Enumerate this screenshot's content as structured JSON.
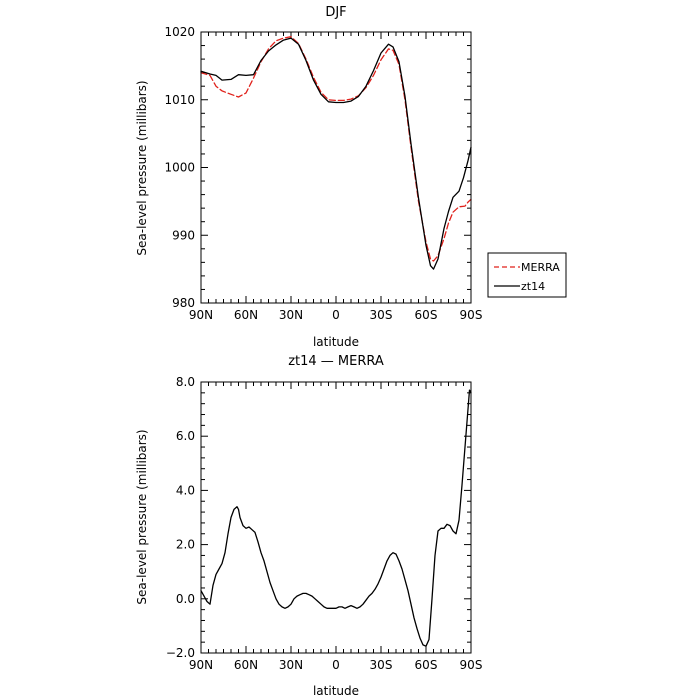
{
  "chart_data": [
    {
      "type": "line",
      "title": "DJF",
      "xlabel": "latitude",
      "ylabel": "Sea-level pressure (millibars)",
      "xlim": [
        90,
        -90
      ],
      "ylim": [
        980,
        1020
      ],
      "x_ticks": [
        90,
        60,
        30,
        0,
        -30,
        -60,
        -90
      ],
      "x_tick_labels": [
        "90N",
        "60N",
        "30N",
        "0",
        "30S",
        "60S",
        "90S"
      ],
      "y_ticks": [
        980,
        990,
        1000,
        1010,
        1020
      ],
      "y_tick_labels": [
        "980",
        "990",
        "1000",
        "1010",
        "1020"
      ],
      "grid": false,
      "legend_position": "right",
      "series": [
        {
          "name": "MERRA",
          "color": "#e0211b",
          "dash": "dashed",
          "x": [
            90,
            84,
            80,
            76,
            70,
            65,
            60,
            55,
            50,
            45,
            40,
            35,
            30,
            25,
            20,
            15,
            10,
            5,
            0,
            -5,
            -10,
            -15,
            -20,
            -25,
            -30,
            -35,
            -38,
            -42,
            -46,
            -50,
            -55,
            -60,
            -63,
            -65,
            -68,
            -72,
            -75,
            -78,
            -82,
            -86,
            -88,
            -90
          ],
          "y": [
            1014,
            1013.6,
            1012,
            1011.3,
            1010.8,
            1010.4,
            1011,
            1013.2,
            1015.6,
            1017.5,
            1018.7,
            1019.1,
            1019.3,
            1018.3,
            1016,
            1013.3,
            1011.1,
            1010,
            1009.9,
            1009.9,
            1010.1,
            1010.6,
            1011.8,
            1013.6,
            1015.9,
            1017.5,
            1017.3,
            1015.2,
            1010,
            1003,
            995,
            989,
            986.5,
            986.2,
            987,
            989.5,
            991.8,
            993.4,
            994.2,
            994.3,
            994.9,
            995.3
          ]
        },
        {
          "name": "zt14",
          "color": "#000000",
          "dash": "solid",
          "x": [
            90,
            84,
            80,
            76,
            70,
            65,
            60,
            55,
            50,
            45,
            40,
            35,
            30,
            25,
            20,
            15,
            10,
            5,
            0,
            -5,
            -10,
            -15,
            -20,
            -25,
            -30,
            -35,
            -38,
            -42,
            -46,
            -50,
            -55,
            -60,
            -63,
            -65,
            -68,
            -72,
            -75,
            -78,
            -82,
            -85,
            -88,
            -90
          ],
          "y": [
            1014.2,
            1013.8,
            1013.6,
            1012.9,
            1013,
            1013.7,
            1013.6,
            1013.7,
            1015.8,
            1017.2,
            1018.1,
            1018.8,
            1019.1,
            1018.2,
            1015.8,
            1012.9,
            1010.8,
            1009.7,
            1009.6,
            1009.6,
            1009.8,
            1010.5,
            1012,
            1014.3,
            1016.9,
            1018.2,
            1017.8,
            1015.6,
            1010.5,
            1003.5,
            995.5,
            988.5,
            985.5,
            985,
            986.5,
            991,
            993.5,
            995.6,
            996.5,
            998.5,
            1001,
            1003
          ]
        }
      ]
    },
    {
      "type": "line",
      "title": "zt14 — MERRA",
      "xlabel": "latitude",
      "ylabel": "Sea-level pressure (millibars)",
      "xlim": [
        90,
        -90
      ],
      "ylim": [
        -2,
        8
      ],
      "x_ticks": [
        90,
        60,
        30,
        0,
        -30,
        -60,
        -90
      ],
      "x_tick_labels": [
        "90N",
        "60N",
        "30N",
        "0",
        "30S",
        "60S",
        "90S"
      ],
      "y_ticks": [
        -2,
        0,
        2,
        4,
        6,
        8
      ],
      "y_tick_labels": [
        "−2.0",
        "0.0",
        "2.0",
        "4.0",
        "6.0",
        "8.0"
      ],
      "grid": false,
      "series": [
        {
          "color": "#000000",
          "dash": "solid",
          "x": [
            90,
            88,
            86,
            84,
            82,
            80,
            78,
            76,
            74,
            72,
            70,
            68,
            66,
            65,
            64,
            62,
            60,
            58,
            56,
            54,
            52,
            50,
            48,
            46,
            44,
            42,
            40,
            38,
            36,
            34,
            32,
            30,
            28,
            26,
            24,
            22,
            20,
            18,
            16,
            14,
            12,
            10,
            8,
            6,
            4,
            2,
            0,
            -2,
            -4,
            -6,
            -8,
            -10,
            -12,
            -14,
            -16,
            -18,
            -20,
            -22,
            -24,
            -26,
            -28,
            -30,
            -32,
            -34,
            -36,
            -38,
            -40,
            -42,
            -44,
            -46,
            -48,
            -50,
            -52,
            -54,
            -56,
            -58,
            -60,
            -62,
            -64,
            -66,
            -68,
            -70,
            -72,
            -74,
            -76,
            -78,
            -80,
            -82,
            -84,
            -86,
            -88,
            -89,
            -90
          ],
          "y": [
            0.3,
            0.1,
            -0.1,
            -0.2,
            0.5,
            0.9,
            1.1,
            1.3,
            1.7,
            2.4,
            3.0,
            3.3,
            3.4,
            3.3,
            3.0,
            2.7,
            2.6,
            2.65,
            2.55,
            2.45,
            2.1,
            1.7,
            1.4,
            1.0,
            0.6,
            0.3,
            0.0,
            -0.2,
            -0.3,
            -0.35,
            -0.3,
            -0.2,
            0.0,
            0.1,
            0.15,
            0.2,
            0.2,
            0.15,
            0.1,
            0.0,
            -0.1,
            -0.2,
            -0.3,
            -0.35,
            -0.35,
            -0.35,
            -0.35,
            -0.3,
            -0.3,
            -0.35,
            -0.3,
            -0.25,
            -0.3,
            -0.35,
            -0.3,
            -0.2,
            -0.05,
            0.1,
            0.2,
            0.35,
            0.55,
            0.8,
            1.1,
            1.4,
            1.6,
            1.7,
            1.65,
            1.4,
            1.1,
            0.7,
            0.3,
            -0.2,
            -0.7,
            -1.1,
            -1.45,
            -1.7,
            -1.75,
            -1.5,
            0.0,
            1.6,
            2.5,
            2.6,
            2.6,
            2.75,
            2.7,
            2.5,
            2.4,
            2.9,
            4.2,
            5.6,
            7.0,
            7.7,
            7.6
          ]
        }
      ]
    }
  ],
  "legend": {
    "merra_label": "MERRA",
    "zt14_label": "zt14"
  }
}
